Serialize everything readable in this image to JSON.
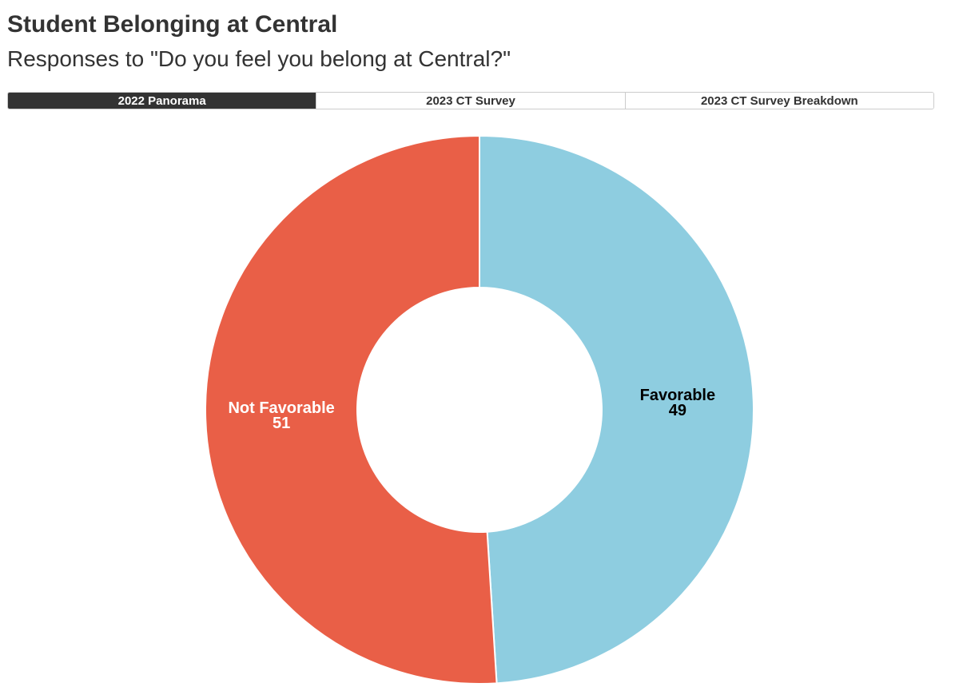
{
  "header": {
    "title": "Student Belonging at Central",
    "subtitle": "Responses to \"Do you feel you belong at Central?\""
  },
  "tabs": [
    {
      "label": "2022 Panorama",
      "active": true
    },
    {
      "label": "2023 CT Survey",
      "active": false
    },
    {
      "label": "2023 CT Survey Breakdown",
      "active": false
    }
  ],
  "chart_data": {
    "type": "pie",
    "donut": true,
    "title": "",
    "slices": [
      {
        "label": "Favorable",
        "value": 49,
        "color": "#8ecde0",
        "label_color": "#000000"
      },
      {
        "label": "Not Favorable",
        "value": 51,
        "color": "#e95f47",
        "label_color": "#ffffff"
      }
    ],
    "start": "12 o'clock",
    "direction": "clockwise"
  }
}
